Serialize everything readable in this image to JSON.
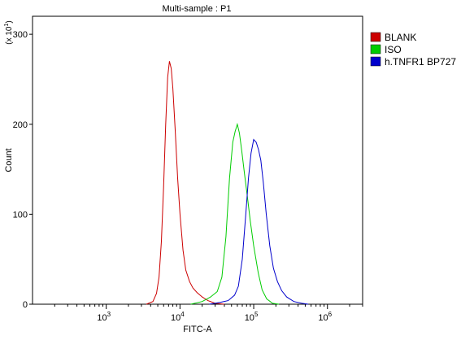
{
  "chart_data": {
    "type": "line",
    "title": "Multi-sample : P1",
    "xlabel": "FITC-A",
    "ylabel": "Count",
    "y_multiplier_label": "(x 10^1)",
    "x_scale": "log",
    "xlim": [
      100,
      3000000
    ],
    "ylim": [
      0,
      320
    ],
    "x_ticks": [
      1000,
      10000,
      100000,
      1000000
    ],
    "x_tick_labels": [
      "10^3",
      "10^4",
      "10^5",
      "10^6"
    ],
    "y_ticks": [
      0,
      100,
      200,
      300
    ],
    "y_tick_labels": [
      "0",
      "100",
      "200",
      "300"
    ],
    "grid": false,
    "legend_position": "top-right",
    "series": [
      {
        "name": "BLANK",
        "color": "#cc0000",
        "points": [
          [
            3500,
            0
          ],
          [
            4300,
            3
          ],
          [
            4800,
            12
          ],
          [
            5200,
            30
          ],
          [
            5600,
            70
          ],
          [
            6000,
            130
          ],
          [
            6400,
            200
          ],
          [
            6800,
            252
          ],
          [
            7200,
            270
          ],
          [
            7600,
            262
          ],
          [
            8000,
            240
          ],
          [
            8600,
            195
          ],
          [
            9300,
            140
          ],
          [
            10000,
            100
          ],
          [
            11000,
            60
          ],
          [
            12000,
            38
          ],
          [
            13500,
            25
          ],
          [
            15000,
            18
          ],
          [
            17000,
            13
          ],
          [
            20000,
            8
          ],
          [
            24000,
            4
          ],
          [
            30000,
            1
          ],
          [
            40000,
            0
          ]
        ]
      },
      {
        "name": "ISO",
        "color": "#00cc00",
        "points": [
          [
            14000,
            0
          ],
          [
            20000,
            3
          ],
          [
            26000,
            8
          ],
          [
            32000,
            14
          ],
          [
            37000,
            30
          ],
          [
            42000,
            75
          ],
          [
            47000,
            140
          ],
          [
            52000,
            180
          ],
          [
            56000,
            192
          ],
          [
            60000,
            200
          ],
          [
            64000,
            190
          ],
          [
            69000,
            170
          ],
          [
            75000,
            145
          ],
          [
            82000,
            120
          ],
          [
            90000,
            92
          ],
          [
            100000,
            65
          ],
          [
            115000,
            35
          ],
          [
            130000,
            16
          ],
          [
            150000,
            6
          ],
          [
            180000,
            1
          ],
          [
            220000,
            0
          ]
        ]
      },
      {
        "name": "h.TNFR1 BP727",
        "color": "#0000cc",
        "points": [
          [
            25000,
            0
          ],
          [
            35000,
            2
          ],
          [
            45000,
            4
          ],
          [
            55000,
            10
          ],
          [
            62000,
            20
          ],
          [
            70000,
            50
          ],
          [
            78000,
            100
          ],
          [
            85000,
            140
          ],
          [
            92000,
            168
          ],
          [
            100000,
            183
          ],
          [
            108000,
            180
          ],
          [
            116000,
            172
          ],
          [
            125000,
            160
          ],
          [
            135000,
            135
          ],
          [
            148000,
            100
          ],
          [
            165000,
            65
          ],
          [
            185000,
            40
          ],
          [
            210000,
            25
          ],
          [
            240000,
            15
          ],
          [
            280000,
            8
          ],
          [
            350000,
            3
          ],
          [
            450000,
            1
          ],
          [
            550000,
            0
          ]
        ]
      }
    ]
  }
}
